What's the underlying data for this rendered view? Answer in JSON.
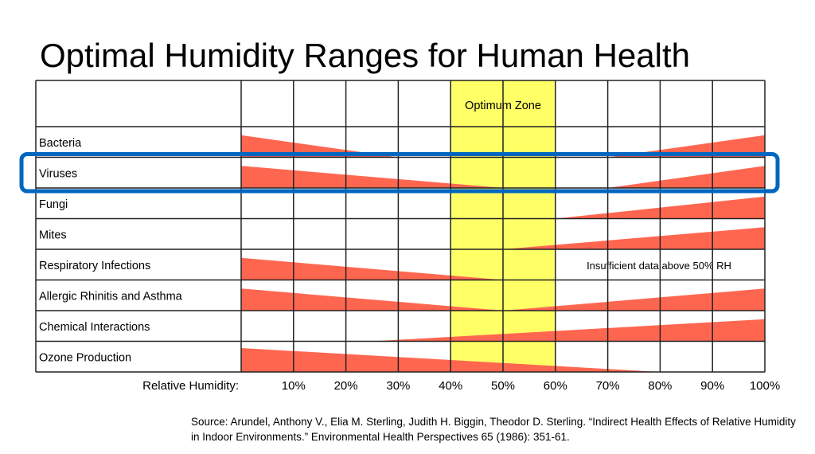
{
  "chart_data": {
    "type": "table",
    "title": "Optimal Humidity Ranges for Human Health",
    "xlabel": "Relative Humidity:",
    "x_ticks": [
      "10%",
      "20%",
      "30%",
      "40%",
      "50%",
      "60%",
      "70%",
      "80%",
      "90%",
      "100%"
    ],
    "xlim": [
      0,
      100
    ],
    "optimum_zone": {
      "label": "Optimum Zone",
      "range": [
        40,
        60
      ],
      "color": "#ffff66"
    },
    "wedge_color": "#ff6650",
    "highlight_color": "#0066c0",
    "highlighted_row": "Viruses",
    "rows": [
      {
        "label": "Bacteria",
        "wedges": [
          {
            "from": 0,
            "to": 30,
            "peak": "left"
          },
          {
            "from": 70,
            "to": 100,
            "peak": "right"
          }
        ]
      },
      {
        "label": "Viruses",
        "wedges": [
          {
            "from": 0,
            "to": 50,
            "peak": "left"
          },
          {
            "from": 70,
            "to": 100,
            "peak": "right"
          }
        ]
      },
      {
        "label": "Fungi",
        "wedges": [
          {
            "from": 60,
            "to": 100,
            "peak": "right"
          }
        ]
      },
      {
        "label": "Mites",
        "wedges": [
          {
            "from": 50,
            "to": 100,
            "peak": "right"
          }
        ]
      },
      {
        "label": "Respiratory Infections",
        "wedges": [
          {
            "from": 0,
            "to": 50,
            "peak": "left"
          }
        ],
        "note": "Insufficient data above 50% RH"
      },
      {
        "label": "Allergic Rhinitis and Asthma",
        "wedges": [
          {
            "from": 0,
            "to": 50,
            "peak": "left"
          },
          {
            "from": 50,
            "to": 100,
            "peak": "right"
          }
        ]
      },
      {
        "label": "Chemical Interactions",
        "wedges": [
          {
            "from": 25,
            "to": 100,
            "peak": "right"
          }
        ]
      },
      {
        "label": "Ozone Production",
        "wedges": [
          {
            "from": 0,
            "to": 80,
            "peak": "left"
          }
        ]
      }
    ]
  },
  "source": "Source: Arundel, Anthony V., Elia M. Sterling, Judith H. Biggin, Theodor D. Sterling. “Indirect Health Effects of Relative Humidity in Indoor Environments.” Environmental Health Perspectives 65 (1986): 351-61."
}
